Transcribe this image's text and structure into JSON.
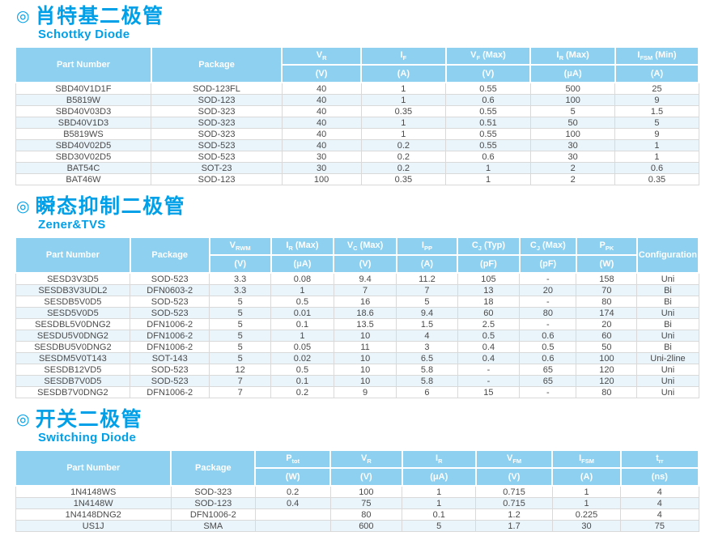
{
  "colors": {
    "accent": "#00a0e9",
    "header_bg": "#8dd0ef",
    "row_alt_bg": "#e9f4fb",
    "row_bg": "#ffffff",
    "body_text": "#4a4a4a",
    "grid_line": "#d9d9d9"
  },
  "sections": [
    {
      "icon": "◎",
      "title_zh": "肖特基二极管",
      "title_en": "Schottky Diode",
      "table": {
        "lead_headers": [
          "Part Number",
          "Package"
        ],
        "param_headers": [
          {
            "base": "V",
            "sub": "R",
            "suffix": "",
            "unit": "(V)"
          },
          {
            "base": "I",
            "sub": "F",
            "suffix": "",
            "unit": "(A)"
          },
          {
            "base": "V",
            "sub": "F",
            "suffix": "(Max)",
            "unit": "(V)"
          },
          {
            "base": "I",
            "sub": "R",
            "suffix": "(Max)",
            "unit": "(μA)"
          },
          {
            "base": "I",
            "sub": "FSM",
            "suffix": "(Min)",
            "unit": "(A)"
          }
        ],
        "tail_headers": [],
        "rows": [
          [
            "SBD40V1D1F",
            "SOD-123FL",
            "40",
            "1",
            "0.55",
            "500",
            "25"
          ],
          [
            "B5819W",
            "SOD-123",
            "40",
            "1",
            "0.6",
            "100",
            "9"
          ],
          [
            "SBD40V03D3",
            "SOD-323",
            "40",
            "0.35",
            "0.55",
            "5",
            "1.5"
          ],
          [
            "SBD40V1D3",
            "SOD-323",
            "40",
            "1",
            "0.51",
            "50",
            "5"
          ],
          [
            "B5819WS",
            "SOD-323",
            "40",
            "1",
            "0.55",
            "100",
            "9"
          ],
          [
            "SBD40V02D5",
            "SOD-523",
            "40",
            "0.2",
            "0.55",
            "30",
            "1"
          ],
          [
            "SBD30V02D5",
            "SOD-523",
            "30",
            "0.2",
            "0.6",
            "30",
            "1"
          ],
          [
            "BAT54C",
            "SOT-23",
            "30",
            "0.2",
            "1",
            "2",
            "0.6"
          ],
          [
            "BAT46W",
            "SOD-123",
            "100",
            "0.35",
            "1",
            "2",
            "0.35"
          ]
        ]
      }
    },
    {
      "icon": "◎",
      "title_zh": "瞬态抑制二极管",
      "title_en": "Zener&TVS",
      "table": {
        "lead_headers": [
          "Part Number",
          "Package"
        ],
        "param_headers": [
          {
            "base": "V",
            "sub": "RWM",
            "suffix": "",
            "unit": "(V)"
          },
          {
            "base": "I",
            "sub": "R",
            "suffix": "(Max)",
            "unit": "(μA)"
          },
          {
            "base": "V",
            "sub": "C",
            "suffix": "(Max)",
            "unit": "(V)"
          },
          {
            "base": "I",
            "sub": "PP",
            "suffix": "",
            "unit": "(A)"
          },
          {
            "base": "C",
            "sub": "J",
            "suffix": "(Typ)",
            "unit": "(pF)"
          },
          {
            "base": "C",
            "sub": "J",
            "suffix": "(Max)",
            "unit": "(pF)"
          },
          {
            "base": "P",
            "sub": "PK",
            "suffix": "",
            "unit": "(W)"
          }
        ],
        "tail_headers": [
          "Configuration"
        ],
        "rows": [
          [
            "SESD3V3D5",
            "SOD-523",
            "3.3",
            "0.08",
            "9.4",
            "11.2",
            "105",
            "-",
            "158",
            "Uni"
          ],
          [
            "SESDB3V3UDL2",
            "DFN0603-2",
            "3.3",
            "1",
            "7",
            "7",
            "13",
            "20",
            "70",
            "Bi"
          ],
          [
            "SESDB5V0D5",
            "SOD-523",
            "5",
            "0.5",
            "16",
            "5",
            "18",
            "-",
            "80",
            "Bi"
          ],
          [
            "SESD5V0D5",
            "SOD-523",
            "5",
            "0.01",
            "18.6",
            "9.4",
            "60",
            "80",
            "174",
            "Uni"
          ],
          [
            "SESDBL5V0DNG2",
            "DFN1006-2",
            "5",
            "0.1",
            "13.5",
            "1.5",
            "2.5",
            "-",
            "20",
            "Bi"
          ],
          [
            "SESDU5V0DNG2",
            "DFN1006-2",
            "5",
            "1",
            "10",
            "4",
            "0.5",
            "0.6",
            "60",
            "Uni"
          ],
          [
            "SESDBU5V0DNG2",
            "DFN1006-2",
            "5",
            "0.05",
            "11",
            "3",
            "0.4",
            "0.5",
            "50",
            "Bi"
          ],
          [
            "SESDM5V0T143",
            "SOT-143",
            "5",
            "0.02",
            "10",
            "6.5",
            "0.4",
            "0.6",
            "100",
            "Uni-2line"
          ],
          [
            "SESDB12VD5",
            "SOD-523",
            "12",
            "0.5",
            "10",
            "5.8",
            "-",
            "65",
            "120",
            "Uni"
          ],
          [
            "SESDB7V0D5",
            "SOD-523",
            "7",
            "0.1",
            "10",
            "5.8",
            "-",
            "65",
            "120",
            "Uni"
          ],
          [
            "SESDB7V0DNG2",
            "DFN1006-2",
            "7",
            "0.2",
            "9",
            "6",
            "15",
            "-",
            "80",
            "Uni"
          ]
        ]
      }
    },
    {
      "icon": "◎",
      "title_zh": "开关二极管",
      "title_en": "Switching Diode",
      "table": {
        "lead_headers": [
          "Part Number",
          "Package"
        ],
        "param_headers": [
          {
            "base": "P",
            "sub": "tot",
            "suffix": "",
            "unit": "(W)"
          },
          {
            "base": "V",
            "sub": "R",
            "suffix": "",
            "unit": "(V)"
          },
          {
            "base": "I",
            "sub": "R",
            "suffix": "",
            "unit": "(μA)"
          },
          {
            "base": "V",
            "sub": "FM",
            "suffix": "",
            "unit": "(V)"
          },
          {
            "base": "I",
            "sub": "FSM",
            "suffix": "",
            "unit": "(A)"
          },
          {
            "base": "t",
            "sub": "rr",
            "suffix": "",
            "unit": "(ns)"
          }
        ],
        "tail_headers": [],
        "rows": [
          [
            "1N4148WS",
            "SOD-323",
            "0.2",
            "100",
            "1",
            "0.715",
            "1",
            "4"
          ],
          [
            "1N4148W",
            "SOD-123",
            "0.4",
            "75",
            "1",
            "0.715",
            "1",
            "4"
          ],
          [
            "1N4148DNG2",
            "DFN1006-2",
            "",
            "80",
            "0.1",
            "1.2",
            "0.225",
            "4"
          ],
          [
            "US1J",
            "SMA",
            "",
            "600",
            "5",
            "1.7",
            "30",
            "75"
          ]
        ]
      }
    }
  ]
}
